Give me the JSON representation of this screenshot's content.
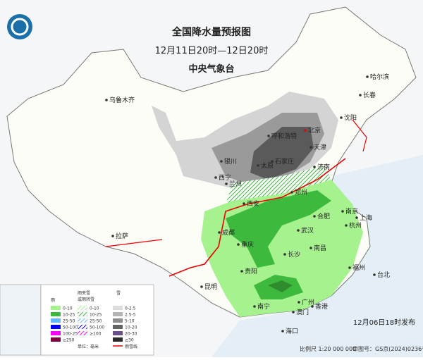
{
  "header": {
    "title": "全国降水量预报图",
    "subtitle": "12月11日20时—12日20时",
    "agency": "中央气象台"
  },
  "cities": [
    "乌鲁木齐",
    "哈尔滨",
    "长春",
    "沈阳",
    "北京",
    "天津",
    "呼和浩特",
    "太原",
    "石家庄",
    "济南",
    "银川",
    "西宁",
    "兰州",
    "郑州",
    "西安",
    "合肥",
    "南京",
    "上海",
    "杭州",
    "武汉",
    "成都",
    "重庆",
    "拉萨",
    "长沙",
    "南昌",
    "贵阳",
    "昆明",
    "福州",
    "台北",
    "南宁",
    "广州",
    "香港",
    "澳门",
    "海口"
  ],
  "legend": {
    "rain": {
      "title": "雨",
      "items": [
        "0-10",
        "10-25",
        "25-50",
        "50-100",
        "100-250",
        "≥250"
      ]
    },
    "sleet": {
      "title_lines": [
        "雨夹雪",
        "或雨转雪"
      ],
      "items": [
        "0-10",
        "10-25",
        "25-50",
        "50-100",
        "≥100"
      ]
    },
    "snow": {
      "title": "雪",
      "items": [
        "0-2.5",
        "2.5-5",
        "5-10",
        "10-20",
        "20-30",
        "≥30"
      ]
    },
    "unit": "单位：毫米",
    "line_label": "雨雪线"
  },
  "footer": {
    "issued": "12月06日18时发布",
    "scale": "比例尺 1:20 000 000",
    "review": "审图号：GS京(2024)0236号"
  }
}
